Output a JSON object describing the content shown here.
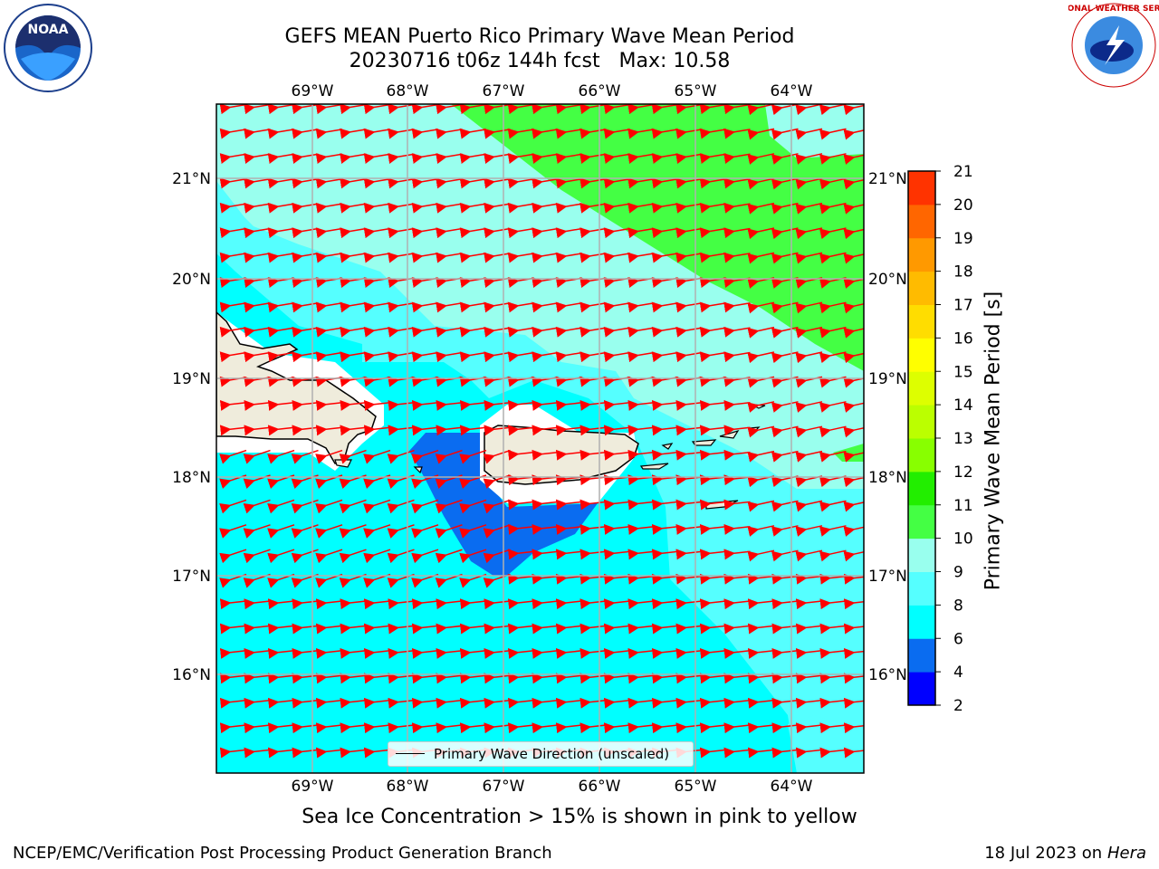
{
  "header": {
    "title_line1": "GEFS MEAN Puerto Rico Primary Wave Mean Period",
    "title_line2": "20230716 t06z 144h fcst   Max: 10.58"
  },
  "logos": {
    "left": {
      "name": "noaa-logo",
      "text": "NOAA"
    },
    "right": {
      "name": "nws-logo",
      "text": "NATIONAL WEATHER SERVICE"
    }
  },
  "map": {
    "lon_labels": [
      "69°W",
      "68°W",
      "67°W",
      "66°W",
      "65°W",
      "64°W"
    ],
    "lat_labels": [
      "21°N",
      "20°N",
      "19°N",
      "18°N",
      "17°N",
      "16°N"
    ],
    "legend_label": "Primary Wave Direction (unscaled)",
    "arrow_color": "#ff0000",
    "land_color": "#efecdc"
  },
  "colorbar": {
    "label": "Primary Wave Mean Period [s]",
    "ticks": [
      "2",
      "4",
      "6",
      "8",
      "9",
      "10",
      "11",
      "12",
      "13",
      "14",
      "15",
      "16",
      "17",
      "18",
      "19",
      "20",
      "21"
    ],
    "colors": [
      "#0000ff",
      "#0a6cf0",
      "#00ffff",
      "#55ffff",
      "#99ffee",
      "#44ff44",
      "#22ee00",
      "#88ff00",
      "#bbff00",
      "#ddff00",
      "#ffff00",
      "#ffdd00",
      "#ffbb00",
      "#ff9900",
      "#ff6600",
      "#ff3300",
      "#ff0000"
    ]
  },
  "notes": {
    "sea_ice": "Sea Ice Concentration > 15% is shown in pink to yellow"
  },
  "footer": {
    "left": "NCEP/EMC/Verification Post Processing Product Generation Branch",
    "right_prefix": "18 Jul 2023 on ",
    "right_host": "Hera"
  }
}
